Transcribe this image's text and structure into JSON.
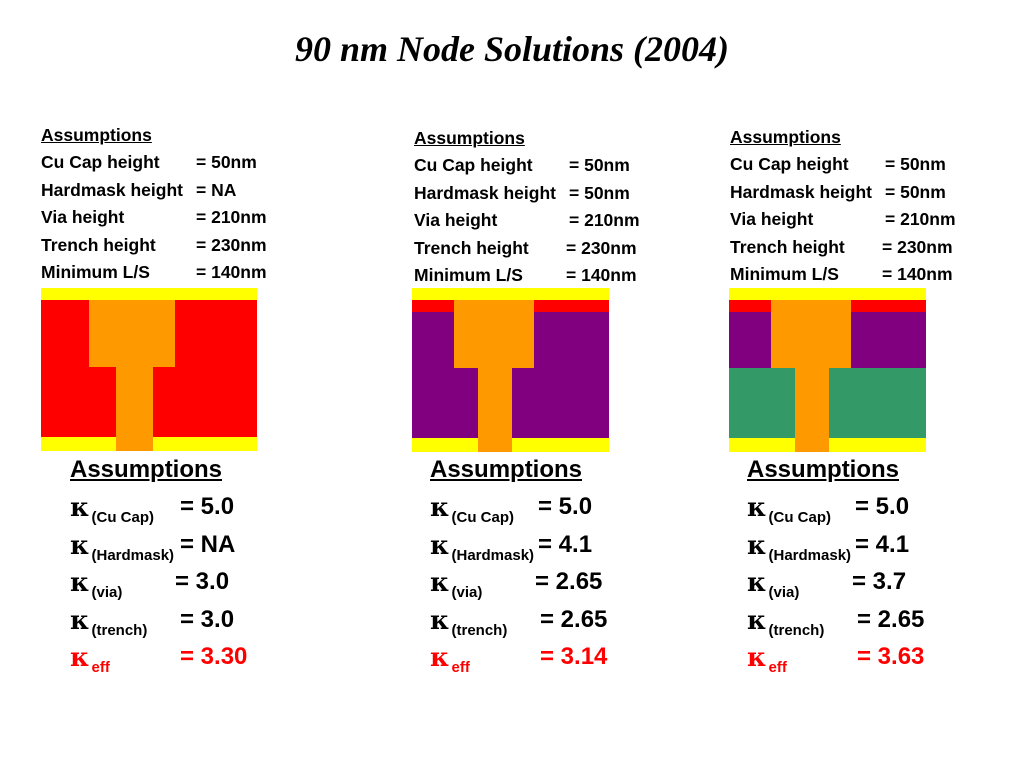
{
  "title": "90 nm Node Solutions (2004)",
  "colors": {
    "cu_cap": "#ffff00",
    "red_dielectric": "#ff0000",
    "purple_dielectric": "#800080",
    "green_dielectric": "#339966",
    "copper": "#ff9900",
    "eff_text": "#ff0000"
  },
  "columns": [
    {
      "top_assumptions": {
        "header": "Assumptions",
        "rows": [
          {
            "key": "Cu Cap height",
            "value": "=  50nm"
          },
          {
            "key": "Hardmask height",
            "value": "=  NA"
          },
          {
            "key": "Via height",
            "value": "=  210nm"
          },
          {
            "key": "Trench height",
            "value": "=  230nm"
          },
          {
            "key": "Minimum L/S",
            "value": "=  140nm"
          }
        ]
      },
      "kappa": {
        "header": "Assumptions",
        "symbol": "κ",
        "rows": [
          {
            "sub": "(Cu Cap)",
            "value": "=  5.0"
          },
          {
            "sub": "(Hardmask)",
            "value": "=  NA"
          },
          {
            "sub": "(via)",
            "value": "=  3.0"
          },
          {
            "sub": "(trench)",
            "value": "=  3.0"
          }
        ],
        "eff": {
          "sub": "eff",
          "value": "=  3.30"
        }
      }
    },
    {
      "top_assumptions": {
        "header": "Assumptions",
        "rows": [
          {
            "key": "Cu Cap height",
            "value": "=  50nm"
          },
          {
            "key": "Hardmask height",
            "value": "=  50nm"
          },
          {
            "key": "Via height",
            "value": "=  210nm"
          },
          {
            "key": "Trench height",
            "value": "=  230nm"
          },
          {
            "key": "Minimum L/S",
            "value": "=  140nm"
          }
        ]
      },
      "kappa": {
        "header": "Assumptions",
        "symbol": "κ",
        "rows": [
          {
            "sub": "(Cu Cap)",
            "value": "=  5.0"
          },
          {
            "sub": "(Hardmask)",
            "value": "=  4.1"
          },
          {
            "sub": "(via)",
            "value": "=  2.65"
          },
          {
            "sub": "(trench)",
            "value": "= 2.65"
          }
        ],
        "eff": {
          "sub": "eff",
          "value": "= 3.14"
        }
      }
    },
    {
      "top_assumptions": {
        "header": "Assumptions",
        "rows": [
          {
            "key": "Cu Cap height",
            "value": "=  50nm"
          },
          {
            "key": "Hardmask height",
            "value": "=  50nm"
          },
          {
            "key": "Via height",
            "value": "=  210nm"
          },
          {
            "key": "Trench height",
            "value": "=  230nm"
          },
          {
            "key": "Minimum L/S",
            "value": "=  140nm"
          }
        ]
      },
      "kappa": {
        "header": "Assumptions",
        "symbol": "κ",
        "rows": [
          {
            "sub": "(Cu Cap)",
            "value": "=  5.0"
          },
          {
            "sub": "(Hardmask)",
            "value": "=  4.1"
          },
          {
            "sub": "(via)",
            "value": "=  3.7"
          },
          {
            "sub": "(trench)",
            "value": "= 2.65"
          }
        ],
        "eff": {
          "sub": "eff",
          "value": "= 3.63"
        }
      }
    }
  ]
}
